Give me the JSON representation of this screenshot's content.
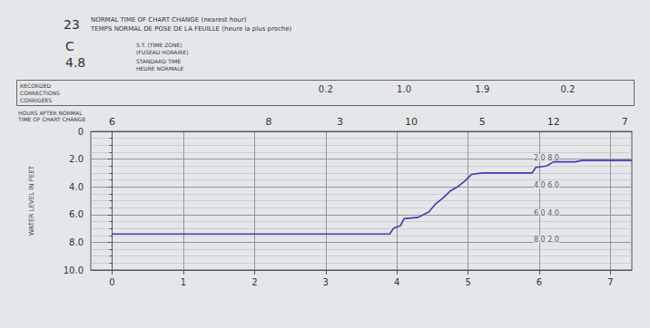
{
  "chart_data": {
    "type": "line",
    "header": [
      "23",
      "NORMAL TIME OF CHART CHANGE (nearest hour)",
      "TEMPS NORMAL DE POSE DE LA FEUILLE (heure la plus proche)",
      "C",
      "4.8",
      "S.T. (TIME ZONE)",
      "(FUSEAU HORAIRE)",
      "STANDARD TIME",
      "HEURE NORMALE"
    ],
    "row_label": [
      "RECORDED",
      "CORRECTIONS",
      "CORRIGÉES"
    ],
    "corrections": {
      "x": [
        3.0,
        4.1,
        5.2,
        6.4
      ],
      "labels": [
        "0.2",
        "1.0",
        "1.9",
        "0.2"
      ]
    },
    "x2_title": "HOURS AFTER NORMAL TIME OF CHART CHANGE",
    "x2ticks": [
      {
        "value": 0,
        "label": "6"
      },
      {
        "value": 2.2,
        "label": "8"
      },
      {
        "value": 3.2,
        "label": "3"
      },
      {
        "value": 4.2,
        "label": "10"
      },
      {
        "value": 5.2,
        "label": "5"
      },
      {
        "value": 6.2,
        "label": "12"
      },
      {
        "value": 7.2,
        "label": "7"
      }
    ],
    "ylabel": "WATER LEVEL IN FEET",
    "x": [
      0,
      3.9,
      3.95,
      4.05,
      4.1,
      4.3,
      4.45,
      4.55,
      4.65,
      4.75,
      4.85,
      4.95,
      5.05,
      5.2,
      5.9,
      5.95,
      6.1,
      6.2,
      6.5,
      6.6,
      7.3
    ],
    "values": [
      7.4,
      7.4,
      7.0,
      6.8,
      6.3,
      6.2,
      5.8,
      5.2,
      4.8,
      4.3,
      4.0,
      3.6,
      3.1,
      3.0,
      3.0,
      2.6,
      2.5,
      2.2,
      2.2,
      2.1,
      2.1
    ],
    "color": "#3b3fb3",
    "xlim": [
      -0.3,
      7.3
    ],
    "xticks": [
      0,
      1,
      2,
      3,
      4,
      5,
      6,
      7
    ],
    "ylim": [
      10,
      0
    ],
    "yticks": [
      0,
      {
        "value": 2,
        "label": "2.0"
      },
      {
        "value": 4,
        "label": "4.0"
      },
      {
        "value": 6,
        "label": "6.0"
      },
      {
        "value": 8,
        "label": "8.0"
      },
      {
        "value": 10,
        "label": "10.0"
      }
    ],
    "grid": true,
    "annotations": [
      {
        "text": "2.0 8.0",
        "x": 6.1,
        "y": 1.9
      },
      {
        "text": "4.0 6.0",
        "x": 6.1,
        "y": 3.9
      },
      {
        "text": "6.0 4.0",
        "x": 6.1,
        "y": 5.9
      },
      {
        "text": "8.0 2.0",
        "x": 6.1,
        "y": 7.8
      }
    ]
  }
}
